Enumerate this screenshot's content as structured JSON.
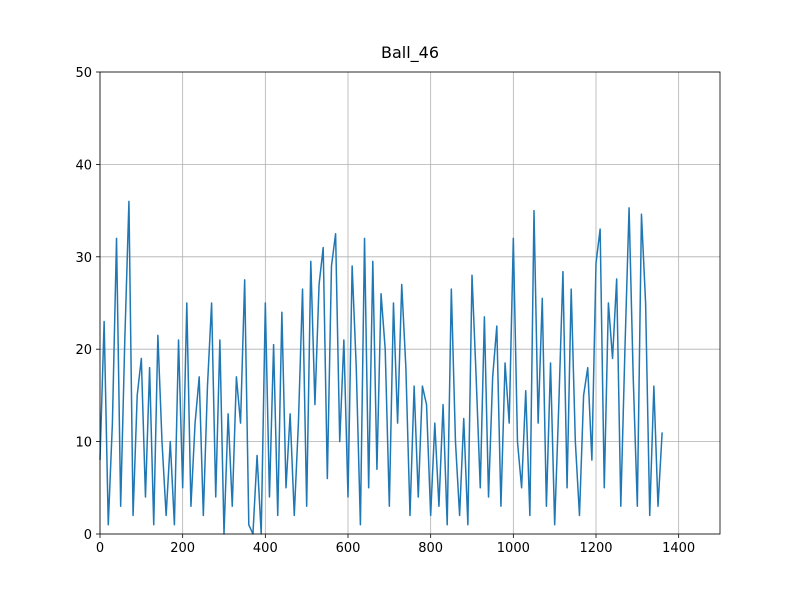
{
  "chart_data": {
    "type": "line",
    "title": "Ball_46",
    "x": [
      0,
      10,
      20,
      30,
      40,
      50,
      60,
      70,
      80,
      90,
      100,
      110,
      120,
      130,
      140,
      150,
      160,
      170,
      180,
      190,
      200,
      210,
      220,
      230,
      240,
      250,
      260,
      270,
      280,
      290,
      300,
      310,
      320,
      330,
      340,
      350,
      360,
      370,
      380,
      390,
      400,
      410,
      420,
      430,
      440,
      450,
      460,
      470,
      480,
      490,
      500,
      510,
      520,
      530,
      540,
      550,
      560,
      570,
      580,
      590,
      600,
      610,
      620,
      630,
      640,
      650,
      660,
      670,
      680,
      690,
      700,
      710,
      720,
      730,
      740,
      750,
      760,
      770,
      780,
      790,
      800,
      810,
      820,
      830,
      840,
      850,
      860,
      870,
      880,
      890,
      900,
      910,
      920,
      930,
      940,
      950,
      960,
      970,
      980,
      990,
      1000,
      1010,
      1020,
      1030,
      1040,
      1050,
      1060,
      1070,
      1080,
      1090,
      1100,
      1110,
      1120,
      1130,
      1140,
      1150,
      1160,
      1170,
      1180,
      1190,
      1200,
      1210,
      1220,
      1230,
      1240,
      1250,
      1260,
      1270,
      1280,
      1290,
      1300,
      1310,
      1320,
      1330,
      1340,
      1350,
      1360
    ],
    "series": [
      {
        "color": "#1f77b4",
        "values": [
          8,
          23,
          1,
          12,
          32,
          3,
          21,
          36,
          2,
          15,
          19,
          4,
          18,
          1,
          21.5,
          10,
          2,
          10,
          1,
          21,
          5,
          25,
          3,
          12,
          17,
          2,
          16,
          25,
          4,
          21,
          0,
          13,
          3,
          17,
          12,
          27.5,
          1,
          0,
          8.5,
          0,
          25,
          4,
          20.5,
          2,
          24,
          5,
          13,
          2,
          12,
          26.5,
          3,
          29.5,
          14,
          27,
          31,
          6,
          29,
          32.5,
          10,
          21,
          4,
          29,
          18,
          1,
          32,
          5,
          29.5,
          7,
          26,
          20,
          3,
          25,
          12,
          27,
          18,
          2,
          16,
          4,
          16,
          14,
          2,
          12,
          3,
          14,
          1,
          26.5,
          10,
          2,
          12.5,
          1,
          28,
          17,
          5,
          23.5,
          4,
          17,
          22.5,
          3,
          18.5,
          12,
          32,
          10,
          5,
          15.5,
          2,
          35,
          12,
          25.5,
          3,
          18.5,
          1,
          14,
          28.4,
          5,
          26.5,
          10,
          2,
          15,
          18,
          8,
          29.3,
          33,
          5,
          25,
          19,
          27.6,
          3,
          20,
          35.3,
          17,
          3,
          34.6,
          25,
          2,
          16,
          3,
          11
        ]
      }
    ],
    "xlim": [
      0,
      1500
    ],
    "xticks": [
      0,
      200,
      400,
      600,
      800,
      1000,
      1200,
      1400
    ],
    "ylim": [
      0,
      50
    ],
    "yticks": [
      0,
      10,
      20,
      30,
      40,
      50
    ],
    "grid": true
  }
}
